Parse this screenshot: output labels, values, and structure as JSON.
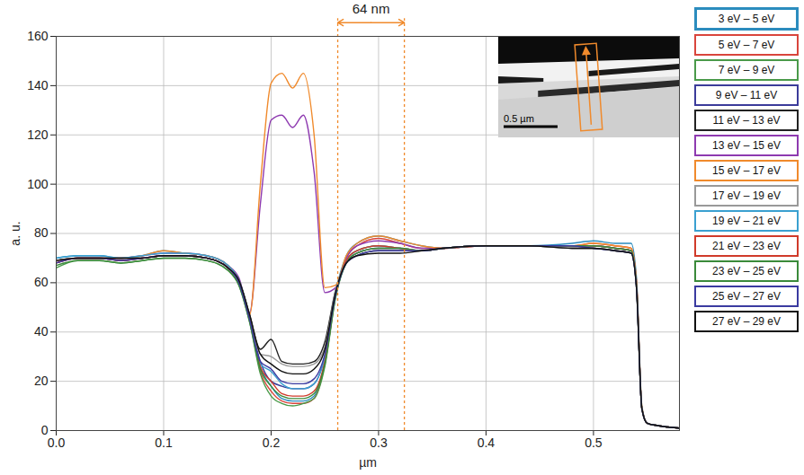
{
  "chart_data": {
    "type": "line",
    "x_label": "µm",
    "y_label": "a. u.",
    "x": [
      0,
      0.02,
      0.04,
      0.06,
      0.08,
      0.1,
      0.12,
      0.14,
      0.16,
      0.17,
      0.18,
      0.19,
      0.2,
      0.21,
      0.22,
      0.23,
      0.24,
      0.25,
      0.26,
      0.27,
      0.28,
      0.3,
      0.32,
      0.34,
      0.36,
      0.4,
      0.44,
      0.48,
      0.5,
      0.52,
      0.535,
      0.54,
      0.545,
      0.55,
      0.56,
      0.58
    ],
    "xlim": [
      0,
      0.58
    ],
    "ylim": [
      0,
      160
    ],
    "xticks": [
      {
        "value": 0,
        "label": "0.0"
      },
      0.1,
      0.2,
      0.3,
      0.4,
      0.5
    ],
    "yticks": [
      0,
      20,
      40,
      60,
      80,
      100,
      120,
      140,
      160
    ],
    "grid": true,
    "legend": "right",
    "annotations": [
      {
        "text": "64 nm",
        "x_start": 0.262,
        "x_end": 0.324,
        "color": "#f08a2c"
      }
    ],
    "inset": {
      "scale_bar_label": "0.5 µm"
    },
    "series": [
      {
        "name": "3 eV – 5 eV",
        "color": "#2b8cbe",
        "values": [
          70,
          71,
          71,
          70,
          71,
          73,
          72,
          71,
          67,
          61,
          46,
          26,
          18,
          13,
          12,
          12,
          14,
          28,
          56,
          71,
          76,
          79,
          77,
          75,
          74,
          75,
          75,
          76,
          77,
          76,
          76,
          62,
          10,
          3,
          2,
          1
        ]
      },
      {
        "name": "5 eV – 7 eV",
        "color": "#d9453c",
        "values": [
          68,
          70,
          70,
          69,
          70,
          71,
          71,
          70,
          66,
          60,
          45,
          24,
          16,
          12,
          11,
          11,
          13,
          27,
          55,
          70,
          75,
          78,
          76,
          74,
          74,
          75,
          75,
          75,
          76,
          75,
          74,
          60,
          9,
          3,
          2,
          1
        ]
      },
      {
        "name": "7 eV – 9 eV",
        "color": "#4a9a4a",
        "values": [
          66,
          69,
          69,
          68,
          69,
          70,
          70,
          69,
          65,
          59,
          44,
          23,
          14,
          11,
          10,
          11,
          13,
          26,
          54,
          69,
          73,
          75,
          74,
          73,
          74,
          75,
          75,
          75,
          75,
          74,
          73,
          59,
          9,
          3,
          2,
          1
        ]
      },
      {
        "name": "9 eV – 11 eV",
        "color": "#3b3b9a",
        "values": [
          68,
          70,
          70,
          69,
          70,
          71,
          71,
          70,
          66,
          60,
          45,
          28,
          20,
          18,
          17,
          17,
          19,
          30,
          55,
          68,
          72,
          74,
          74,
          73,
          74,
          75,
          75,
          75,
          74,
          73,
          72,
          59,
          9,
          3,
          2,
          1
        ]
      },
      {
        "name": "11 eV – 13 eV",
        "color": "#222222",
        "values": [
          69,
          70,
          70,
          70,
          70,
          71,
          71,
          70,
          66,
          61,
          47,
          33,
          37,
          28,
          27,
          27,
          28,
          36,
          57,
          68,
          71,
          73,
          73,
          73,
          74,
          75,
          75,
          74,
          74,
          73,
          72,
          58,
          9,
          3,
          2,
          1
        ]
      },
      {
        "name": "13 eV – 15 eV",
        "color": "#8e3ab0",
        "values": [
          69,
          70,
          70,
          70,
          71,
          72,
          72,
          71,
          67,
          62,
          48,
          92,
          126,
          128,
          123,
          128,
          105,
          56,
          58,
          70,
          75,
          77,
          76,
          74,
          74,
          75,
          75,
          75,
          75,
          74,
          73,
          60,
          9,
          3,
          2,
          1
        ]
      },
      {
        "name": "15 eV – 17 eV",
        "color": "#f08a2c",
        "values": [
          69,
          70,
          70,
          70,
          71,
          73,
          72,
          71,
          67,
          61,
          47,
          100,
          141,
          145,
          139,
          145,
          120,
          58,
          59,
          71,
          76,
          79,
          77,
          75,
          74,
          75,
          75,
          75,
          76,
          75,
          74,
          61,
          10,
          3,
          2,
          1
        ]
      },
      {
        "name": "17 eV – 19 eV",
        "color": "#999999",
        "values": [
          69,
          70,
          70,
          70,
          70,
          71,
          71,
          70,
          66,
          61,
          46,
          31,
          30,
          27,
          26,
          26,
          27,
          34,
          57,
          68,
          72,
          74,
          74,
          73,
          74,
          75,
          75,
          74,
          74,
          73,
          72,
          58,
          9,
          3,
          2,
          1
        ]
      },
      {
        "name": "19 eV – 21 eV",
        "color": "#3aa0d0",
        "values": [
          70,
          71,
          71,
          70,
          71,
          72,
          72,
          71,
          67,
          61,
          46,
          27,
          24,
          19,
          17,
          17,
          19,
          30,
          56,
          69,
          73,
          75,
          74,
          73,
          74,
          75,
          75,
          75,
          75,
          74,
          73,
          59,
          9,
          3,
          2,
          1
        ]
      },
      {
        "name": "21 eV – 23 eV",
        "color": "#d03a2a",
        "values": [
          68,
          70,
          70,
          69,
          70,
          71,
          71,
          70,
          66,
          60,
          45,
          26,
          20,
          15,
          14,
          14,
          16,
          28,
          55,
          69,
          73,
          75,
          74,
          73,
          74,
          75,
          75,
          75,
          75,
          74,
          73,
          59,
          9,
          3,
          2,
          1
        ]
      },
      {
        "name": "23 eV – 25 eV",
        "color": "#3a8a3a",
        "values": [
          67,
          69,
          69,
          68,
          69,
          70,
          70,
          69,
          65,
          59,
          44,
          25,
          18,
          14,
          13,
          13,
          15,
          27,
          54,
          68,
          72,
          74,
          74,
          73,
          74,
          75,
          75,
          75,
          75,
          74,
          73,
          59,
          9,
          3,
          2,
          1
        ]
      },
      {
        "name": "25 eV – 27 eV",
        "color": "#3a3aa0",
        "values": [
          68,
          70,
          70,
          69,
          70,
          71,
          71,
          70,
          66,
          60,
          45,
          28,
          25,
          20,
          19,
          19,
          21,
          31,
          55,
          68,
          71,
          73,
          73,
          73,
          74,
          75,
          75,
          75,
          74,
          73,
          72,
          58,
          9,
          3,
          2,
          1
        ]
      },
      {
        "name": "27 eV – 29 eV",
        "color": "#111111",
        "values": [
          69,
          70,
          70,
          70,
          70,
          71,
          71,
          70,
          66,
          61,
          47,
          31,
          27,
          24,
          23,
          23,
          25,
          33,
          56,
          68,
          71,
          72,
          72,
          73,
          74,
          75,
          75,
          74,
          74,
          73,
          72,
          58,
          9,
          3,
          2,
          1
        ]
      }
    ]
  }
}
